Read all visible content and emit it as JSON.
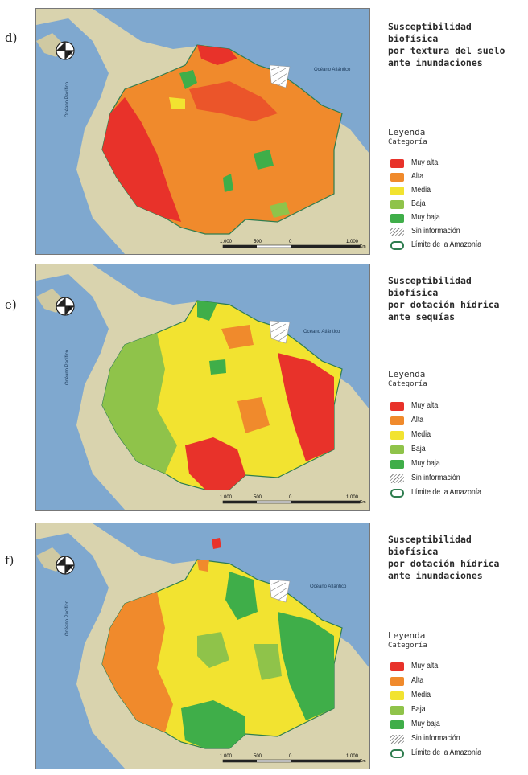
{
  "panels": [
    {
      "letter": "d)",
      "title_lines": [
        "Susceptibilidad biofísica",
        "por textura del suelo",
        "ante inundaciones"
      ],
      "legend_title": "Leyenda",
      "legend_subtitle": "Categoría"
    },
    {
      "letter": "e)",
      "title_lines": [
        "Susceptibilidad biofísica",
        "por dotación hídrica",
        "ante sequías"
      ],
      "legend_title": "Leyenda",
      "legend_subtitle": "Categoría"
    },
    {
      "letter": "f)",
      "title_lines": [
        "Susceptibilidad biofísica",
        "por dotación hídrica",
        "ante inundaciones"
      ],
      "legend_title": "Leyenda",
      "legend_subtitle": "Categoría"
    }
  ],
  "legend": [
    {
      "label": "Muy alta",
      "color": "#e8322a"
    },
    {
      "label": "Alta",
      "color": "#f08a2c"
    },
    {
      "label": "Media",
      "color": "#f2e330"
    },
    {
      "label": "Baja",
      "color": "#8fc34a"
    },
    {
      "label": "Muy baja",
      "color": "#3fae49"
    },
    {
      "label": "Sin información",
      "color": "hatch"
    },
    {
      "label": "Límite de la Amazonía",
      "color": "#2e7d4f"
    }
  ],
  "map_labels": {
    "atlantic": "Océano Atlántico",
    "pacific": "Océano Pacífico",
    "north": "N",
    "scale": [
      "1.000",
      "500",
      "0",
      "1.000"
    ],
    "scale_unit": "Km"
  },
  "colors": {
    "ocean": "#7fa8cf",
    "land": "#d9d3ae",
    "boundary": "#2e7d4f"
  }
}
